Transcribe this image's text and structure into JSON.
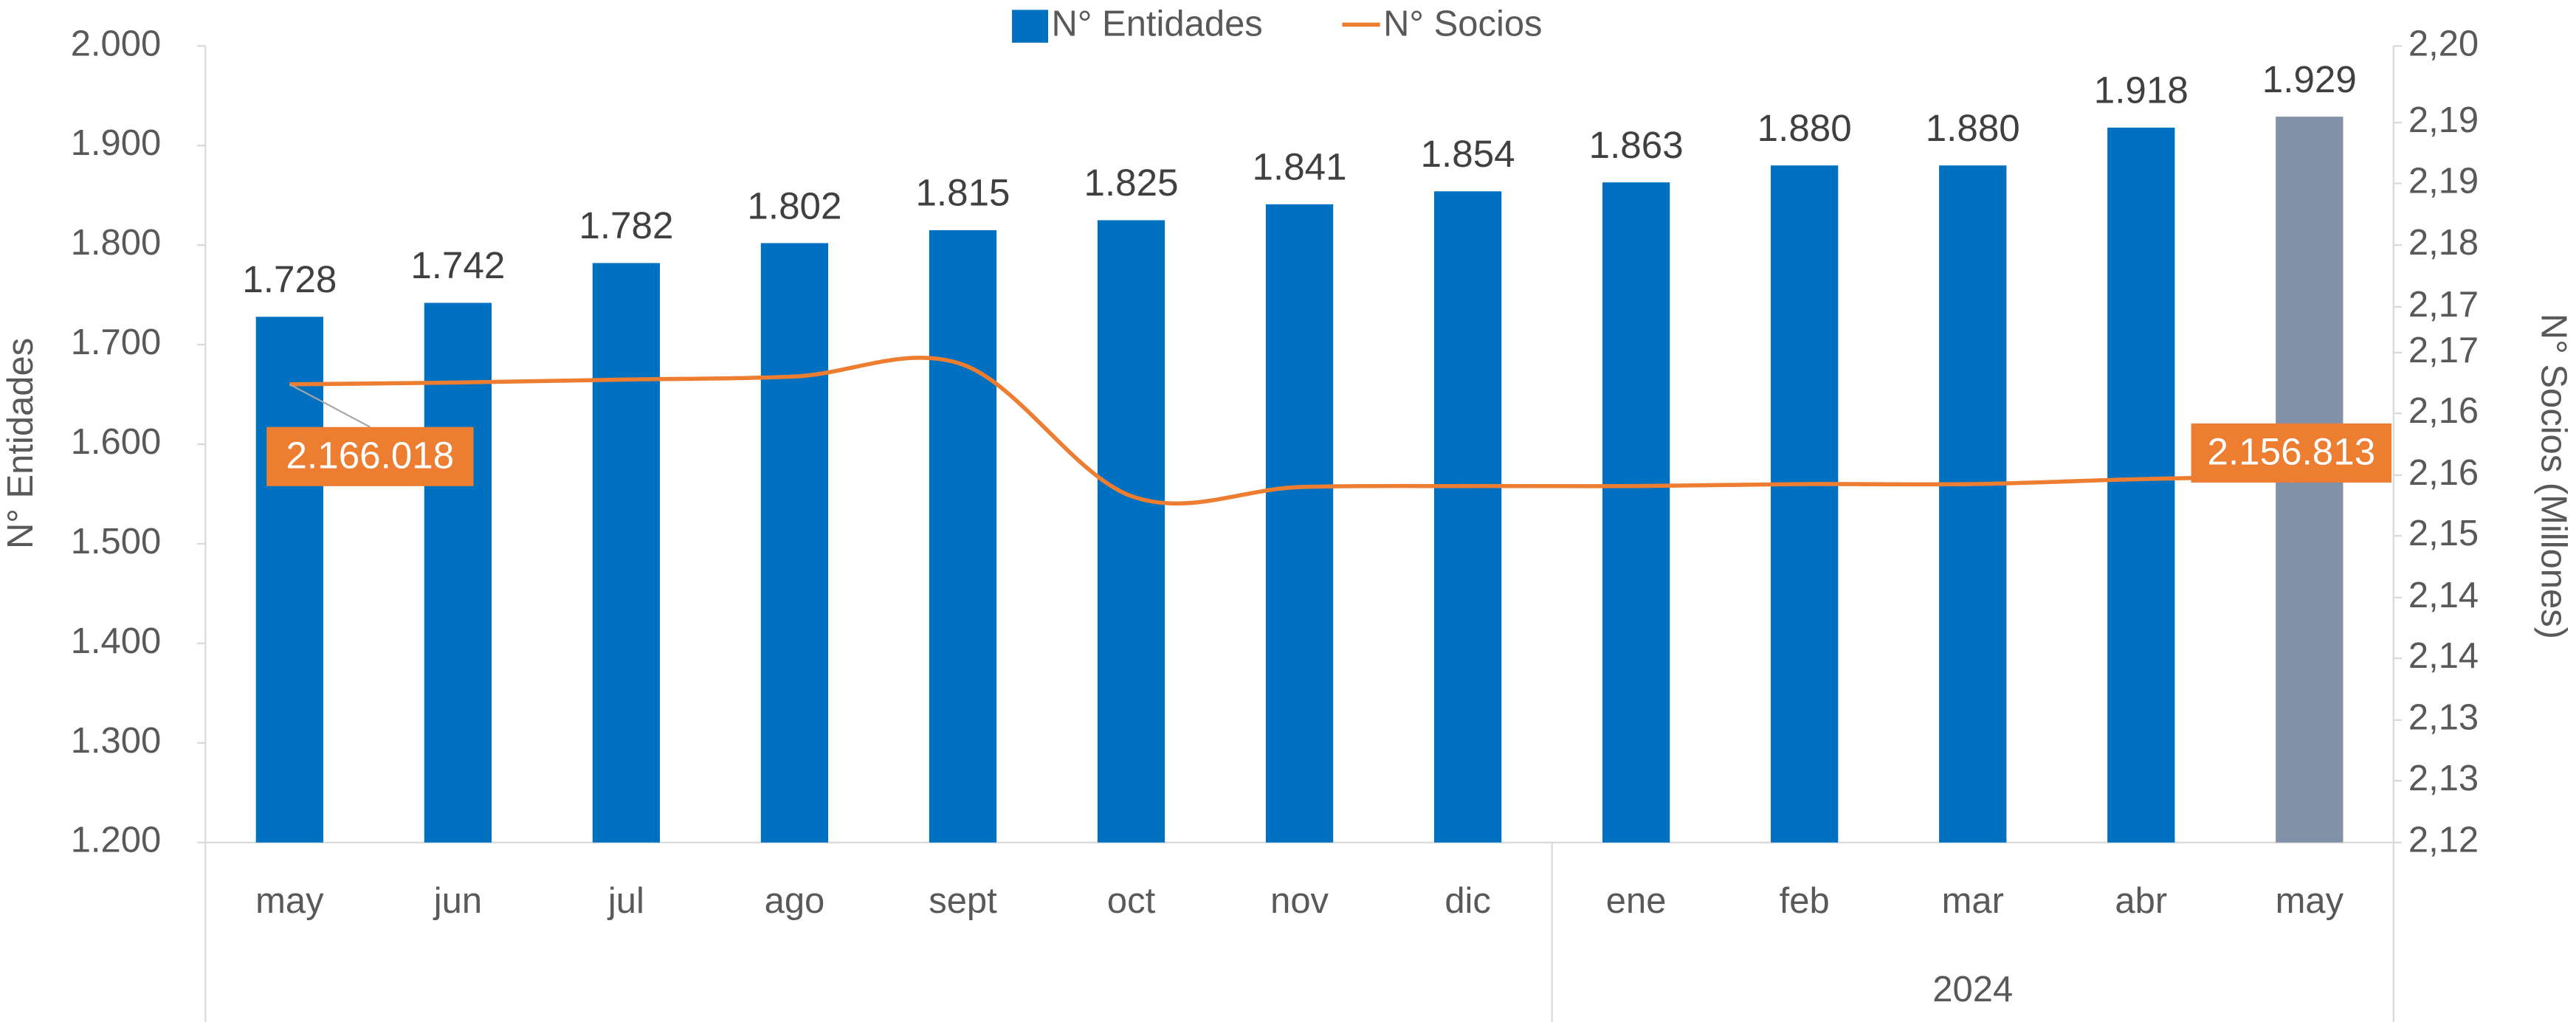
{
  "chart_data": {
    "type": "bar_line",
    "categories": [
      "may",
      "jun",
      "jul",
      "ago",
      "sept",
      "oct",
      "nov",
      "dic",
      "ene",
      "feb",
      "mar",
      "abr",
      "may"
    ],
    "group": {
      "label": "2024",
      "first_category": 8
    },
    "y_label": "N° Entidades",
    "y2_label": "N° Socios (Millones)",
    "series": [
      {
        "name": "N° Entidades",
        "type": "bar",
        "color": "#0070c0",
        "last_color": "#8091a8",
        "values": [
          1728,
          1742,
          1782,
          1802,
          1815,
          1825,
          1841,
          1854,
          1863,
          1880,
          1880,
          1918,
          1929
        ],
        "value_labels": [
          "1.728",
          "1.742",
          "1.782",
          "1.802",
          "1.815",
          "1.825",
          "1.841",
          "1.854",
          "1.863",
          "1.880",
          "1.880",
          "1.918",
          "1.929"
        ]
      },
      {
        "name": "N° Socios",
        "type": "line",
        "axis": "y2",
        "color": "#ed7d31",
        "values": [
          2.166018,
          2.1662,
          2.1665,
          2.1668,
          2.168,
          2.1548,
          2.1557,
          2.1558,
          2.1558,
          2.156,
          2.156,
          2.1565,
          2.156813
        ],
        "annotations": [
          {
            "index": 0,
            "label": "2.166.018"
          },
          {
            "index": 12,
            "label": "2.156.813"
          }
        ]
      }
    ],
    "ylim": [
      1200,
      2000
    ],
    "yticks": [
      {
        "value": 1200,
        "label": "1.200"
      },
      {
        "value": 1300,
        "label": "1.300"
      },
      {
        "value": 1400,
        "label": "1.400"
      },
      {
        "value": 1500,
        "label": "1.500"
      },
      {
        "value": 1600,
        "label": "1.600"
      },
      {
        "value": 1700,
        "label": "1.700"
      },
      {
        "value": 1800,
        "label": "1.800"
      },
      {
        "value": 1900,
        "label": "1.900"
      },
      {
        "value": 2000,
        "label": "2.000"
      }
    ],
    "y2lim": [
      2.12,
      2.2
    ],
    "y2ticks": [
      {
        "value": 2.12,
        "label": "2,12"
      },
      {
        "value": 2.1262,
        "label": "2,13"
      },
      {
        "value": 2.1323,
        "label": "2,13"
      },
      {
        "value": 2.1385,
        "label": "2,14"
      },
      {
        "value": 2.1446,
        "label": "2,14"
      },
      {
        "value": 2.1508,
        "label": "2,15"
      },
      {
        "value": 2.1569,
        "label": "2,16"
      },
      {
        "value": 2.1631,
        "label": "2,16"
      },
      {
        "value": 2.1692,
        "label": "2,17"
      },
      {
        "value": 2.1738,
        "label": "2,17"
      },
      {
        "value": 2.18,
        "label": "2,18"
      },
      {
        "value": 2.1862,
        "label": "2,19"
      },
      {
        "value": 2.1923,
        "label": "2,19"
      },
      {
        "value": 2.2,
        "label": "2,20"
      }
    ],
    "legend": "top"
  }
}
